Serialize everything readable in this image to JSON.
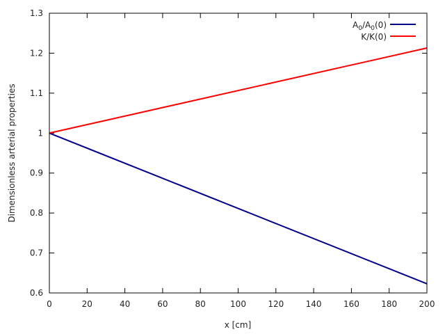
{
  "chart_data": {
    "type": "line",
    "title": "",
    "xlabel": "x [cm]",
    "ylabel": "Dimensionless arterial properties",
    "xlim": [
      0,
      200
    ],
    "ylim": [
      0.6,
      1.3
    ],
    "grid": false,
    "legend_position": "top-right",
    "x_ticks": [
      0,
      20,
      40,
      60,
      80,
      100,
      120,
      140,
      160,
      180,
      200
    ],
    "y_ticks": [
      0.6,
      0.7,
      0.8,
      0.9,
      1,
      1.1,
      1.2,
      1.3
    ],
    "x_tick_labels": [
      "0",
      "20",
      "40",
      "60",
      "80",
      "100",
      "120",
      "140",
      "160",
      "180",
      "200"
    ],
    "y_tick_labels": [
      "0.6",
      "0.7",
      "0.8",
      "0.9",
      "1",
      "1.1",
      "1.2",
      "1.3"
    ],
    "series": [
      {
        "name": "A0/A0(0)",
        "label_main": "A",
        "label_sub": "0",
        "label_mid": "/A",
        "label_sub2": "0",
        "label_tail": "(0)",
        "color": "#00008b",
        "x": [
          0,
          200
        ],
        "y": [
          1.0,
          0.623
        ]
      },
      {
        "name": "K/K(0)",
        "color": "#ff0000",
        "x": [
          0,
          200
        ],
        "y": [
          1.0,
          1.213
        ]
      }
    ]
  }
}
